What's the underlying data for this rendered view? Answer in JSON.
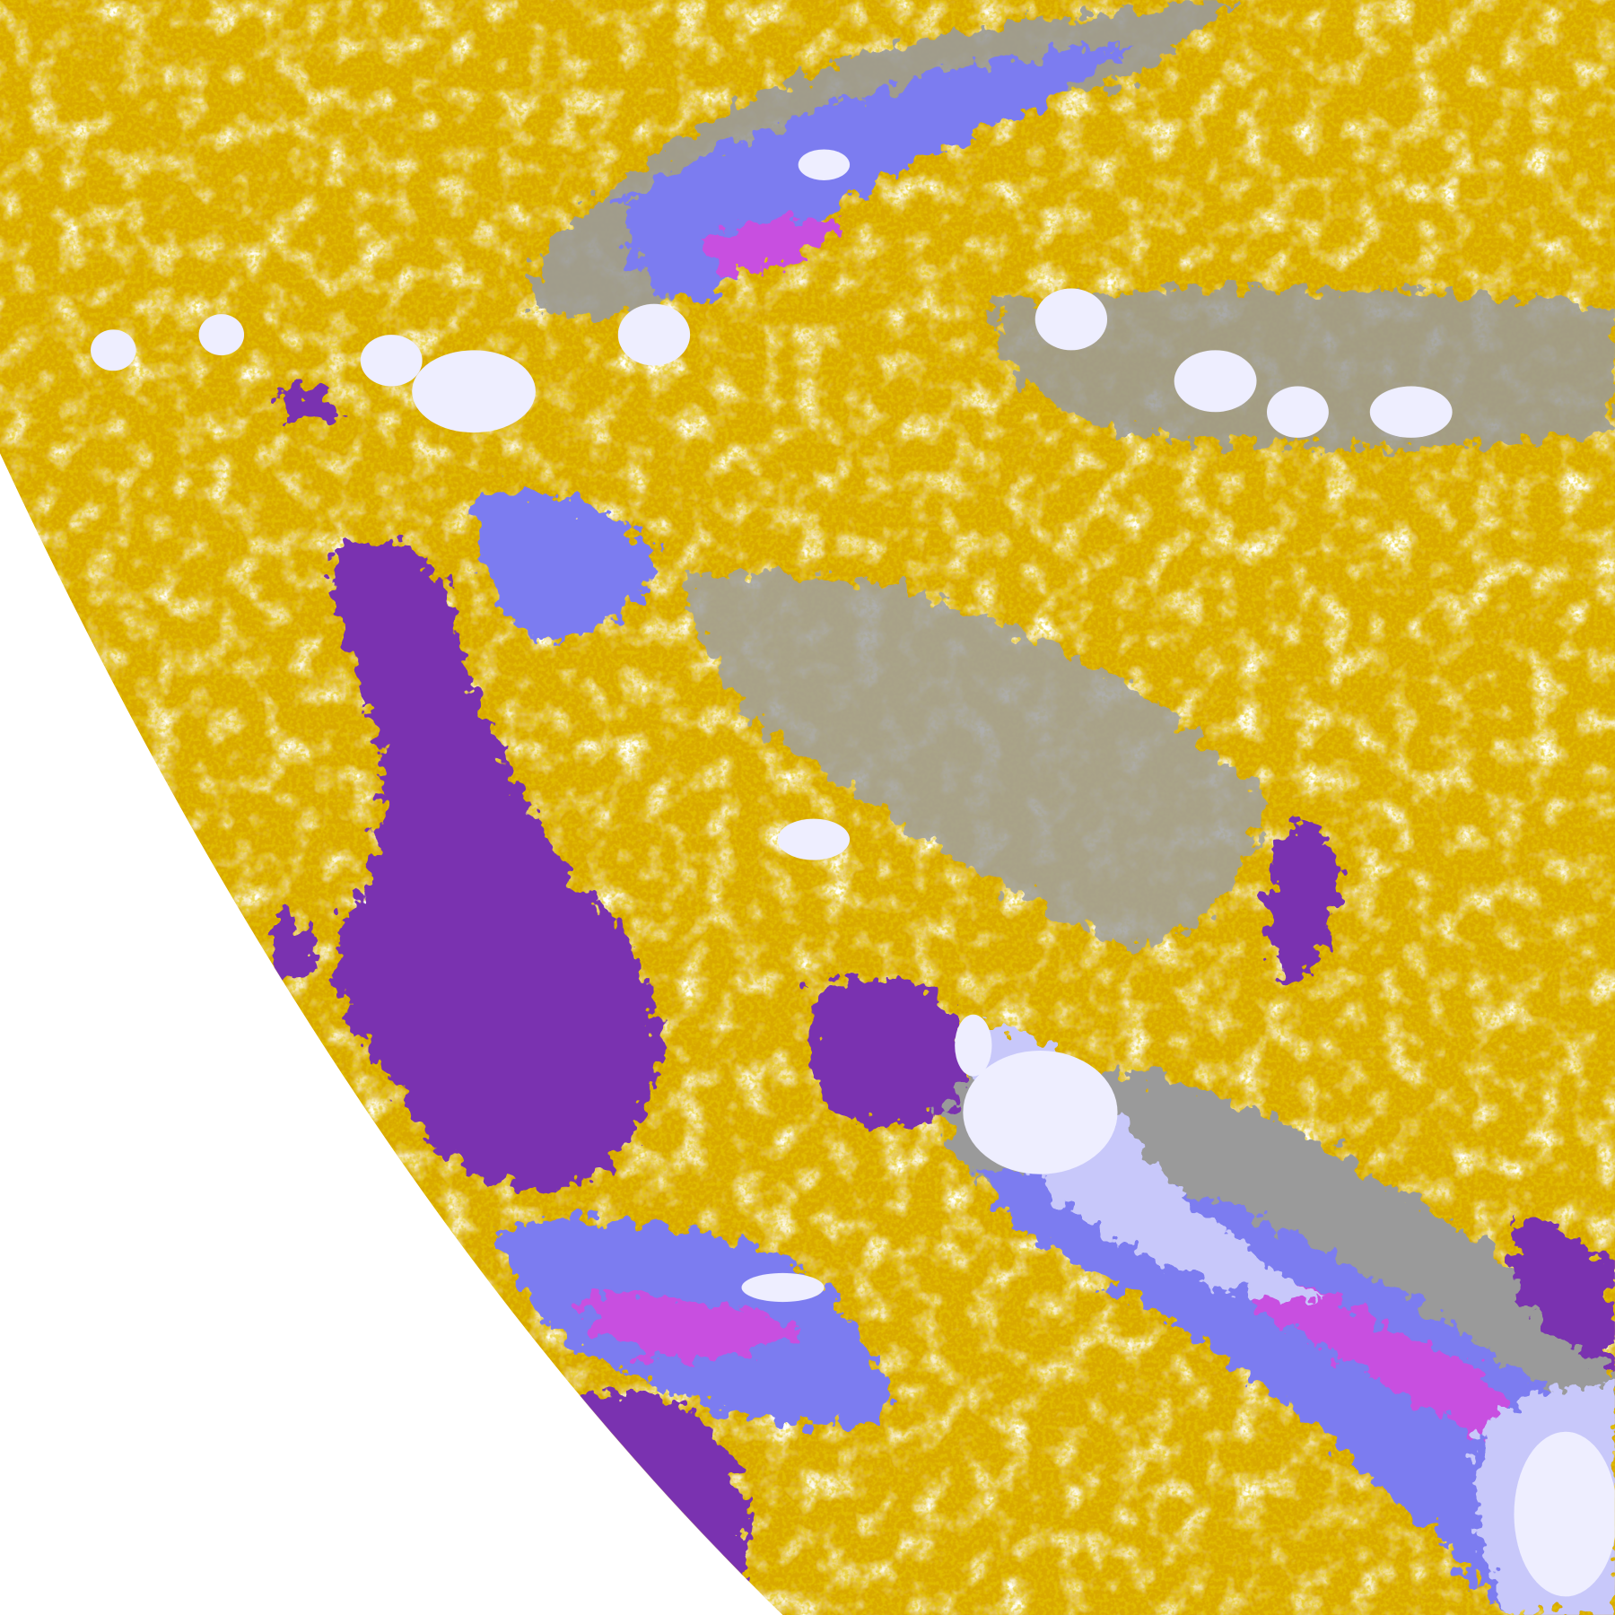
{
  "image": {
    "kind": "false-color satellite cloud classification",
    "palette": {
      "background": "#ffffff",
      "gold": "#d8a800",
      "dark_gold": "#c89400",
      "purple": "#7a33b0",
      "magenta": "#c850e0",
      "periwinkle": "#7c7cf0",
      "lavender": "#c8c8fa",
      "pale_lavender": "#eeeeff",
      "gray": "#999999",
      "light_gray": "#c4c4c4"
    }
  }
}
